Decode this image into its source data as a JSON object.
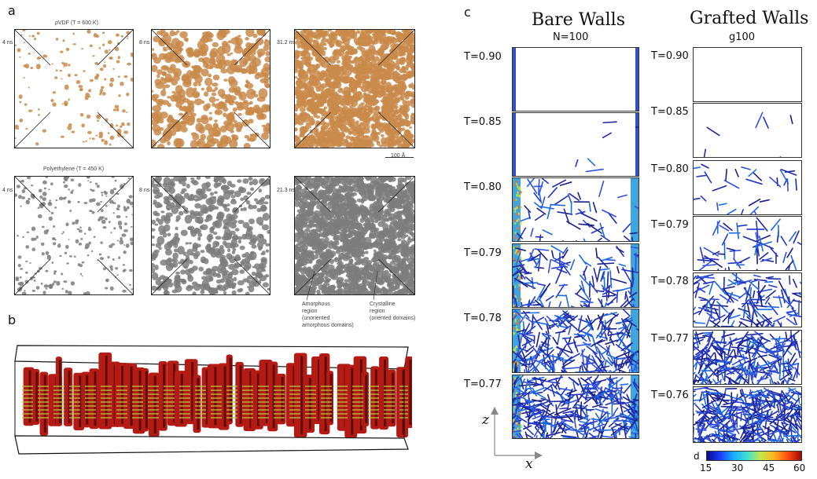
{
  "panel_a": {
    "label": "a",
    "pvdf_title": "pVDF (T = 600 K)",
    "pe_title": "Polyethylene (T = 450 K)",
    "pvdf_times": [
      "4 ns",
      "8 ns",
      "31.2 ns"
    ],
    "pe_times": [
      "4 ns",
      "8 ns",
      "21.3 ns"
    ],
    "scale_bar": "100 Å",
    "annot_amorphous": [
      "Amorphous",
      "region",
      "(unoriented",
      "amorphous domains)"
    ],
    "annot_crystalline": [
      "Crystalline",
      "region",
      "(oriented domains)"
    ],
    "colors": {
      "pvdf": "#c98a4a",
      "pe": "#7d7d7d"
    }
  },
  "panel_b": {
    "label": "b",
    "colors": {
      "chains": "#b41b14",
      "ordered": "#b8c23a"
    }
  },
  "panel_c": {
    "label": "c",
    "bare_title": "Bare Walls",
    "bare_sub": "N=100",
    "grafted_title": "Grafted Walls",
    "grafted_sub": "g100",
    "bare_temps": [
      "T=0.90",
      "T=0.85",
      "T=0.80",
      "T=0.79",
      "T=0.78",
      "T=0.77"
    ],
    "grafted_temps": [
      "T=0.90",
      "T=0.85",
      "T=0.80",
      "T=0.79",
      "T=0.78",
      "T=0.77",
      "T=0.76"
    ],
    "axis_z": "z",
    "axis_x": "x",
    "colorbar": {
      "label": "d",
      "ticks": [
        "15",
        "30",
        "45",
        "60"
      ]
    }
  }
}
